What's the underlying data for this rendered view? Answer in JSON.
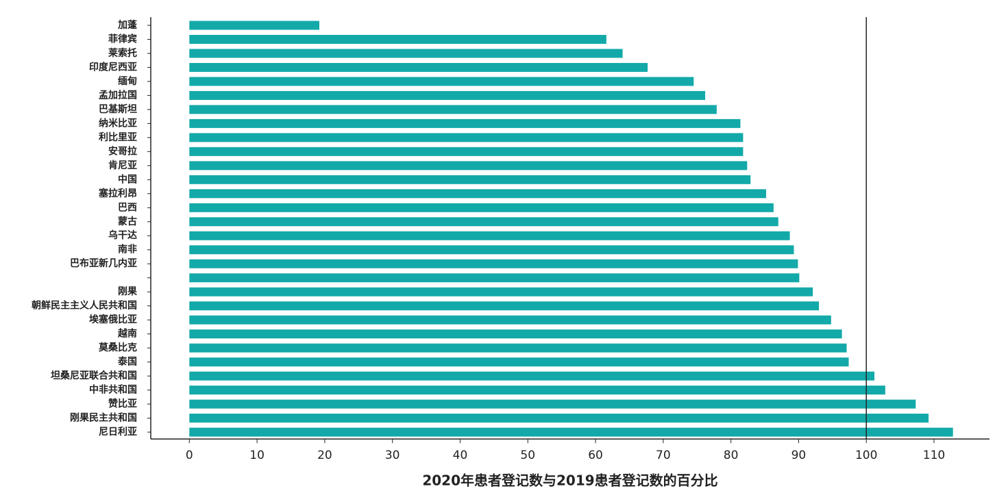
{
  "chart_data": {
    "type": "barh",
    "x_label": "2020年患者登记数与2019患者登记数的百分比",
    "categories": [
      "加蓬",
      "菲律宾",
      "莱索托",
      "印度尼西亚",
      "缅甸",
      "孟加拉国",
      "巴基斯坦",
      "纳米比亚",
      "利比里亚",
      "安哥拉",
      "肯尼亚",
      "中国",
      "塞拉利昂",
      "巴西",
      "蒙古",
      "乌干达",
      "南非",
      "巴布亚新几内亚",
      null,
      "刚果",
      "朝鲜民主主义人民共和国",
      "埃塞俄比亚",
      "越南",
      "莫桑比克",
      "泰国",
      "坦桑尼亚联合共和国",
      "中非共和国",
      "赞比亚",
      "刚果民主共和国",
      "尼日利亚"
    ],
    "values": [
      19.2,
      61.6,
      64.0,
      67.7,
      74.5,
      76.2,
      77.9,
      81.4,
      81.8,
      81.8,
      82.4,
      82.9,
      85.2,
      86.3,
      87.0,
      88.7,
      89.3,
      89.9,
      90.1,
      92.1,
      93.0,
      94.8,
      96.4,
      97.1,
      97.4,
      101.2,
      102.8,
      107.3,
      109.2,
      112.8
    ],
    "color": "#13a9a9",
    "xlim": [
      -5.7,
      118.2
    ],
    "xticks": [
      0,
      10,
      20,
      30,
      40,
      50,
      60,
      70,
      80,
      90,
      100,
      110
    ],
    "reference_line": 100,
    "grid": false
  }
}
